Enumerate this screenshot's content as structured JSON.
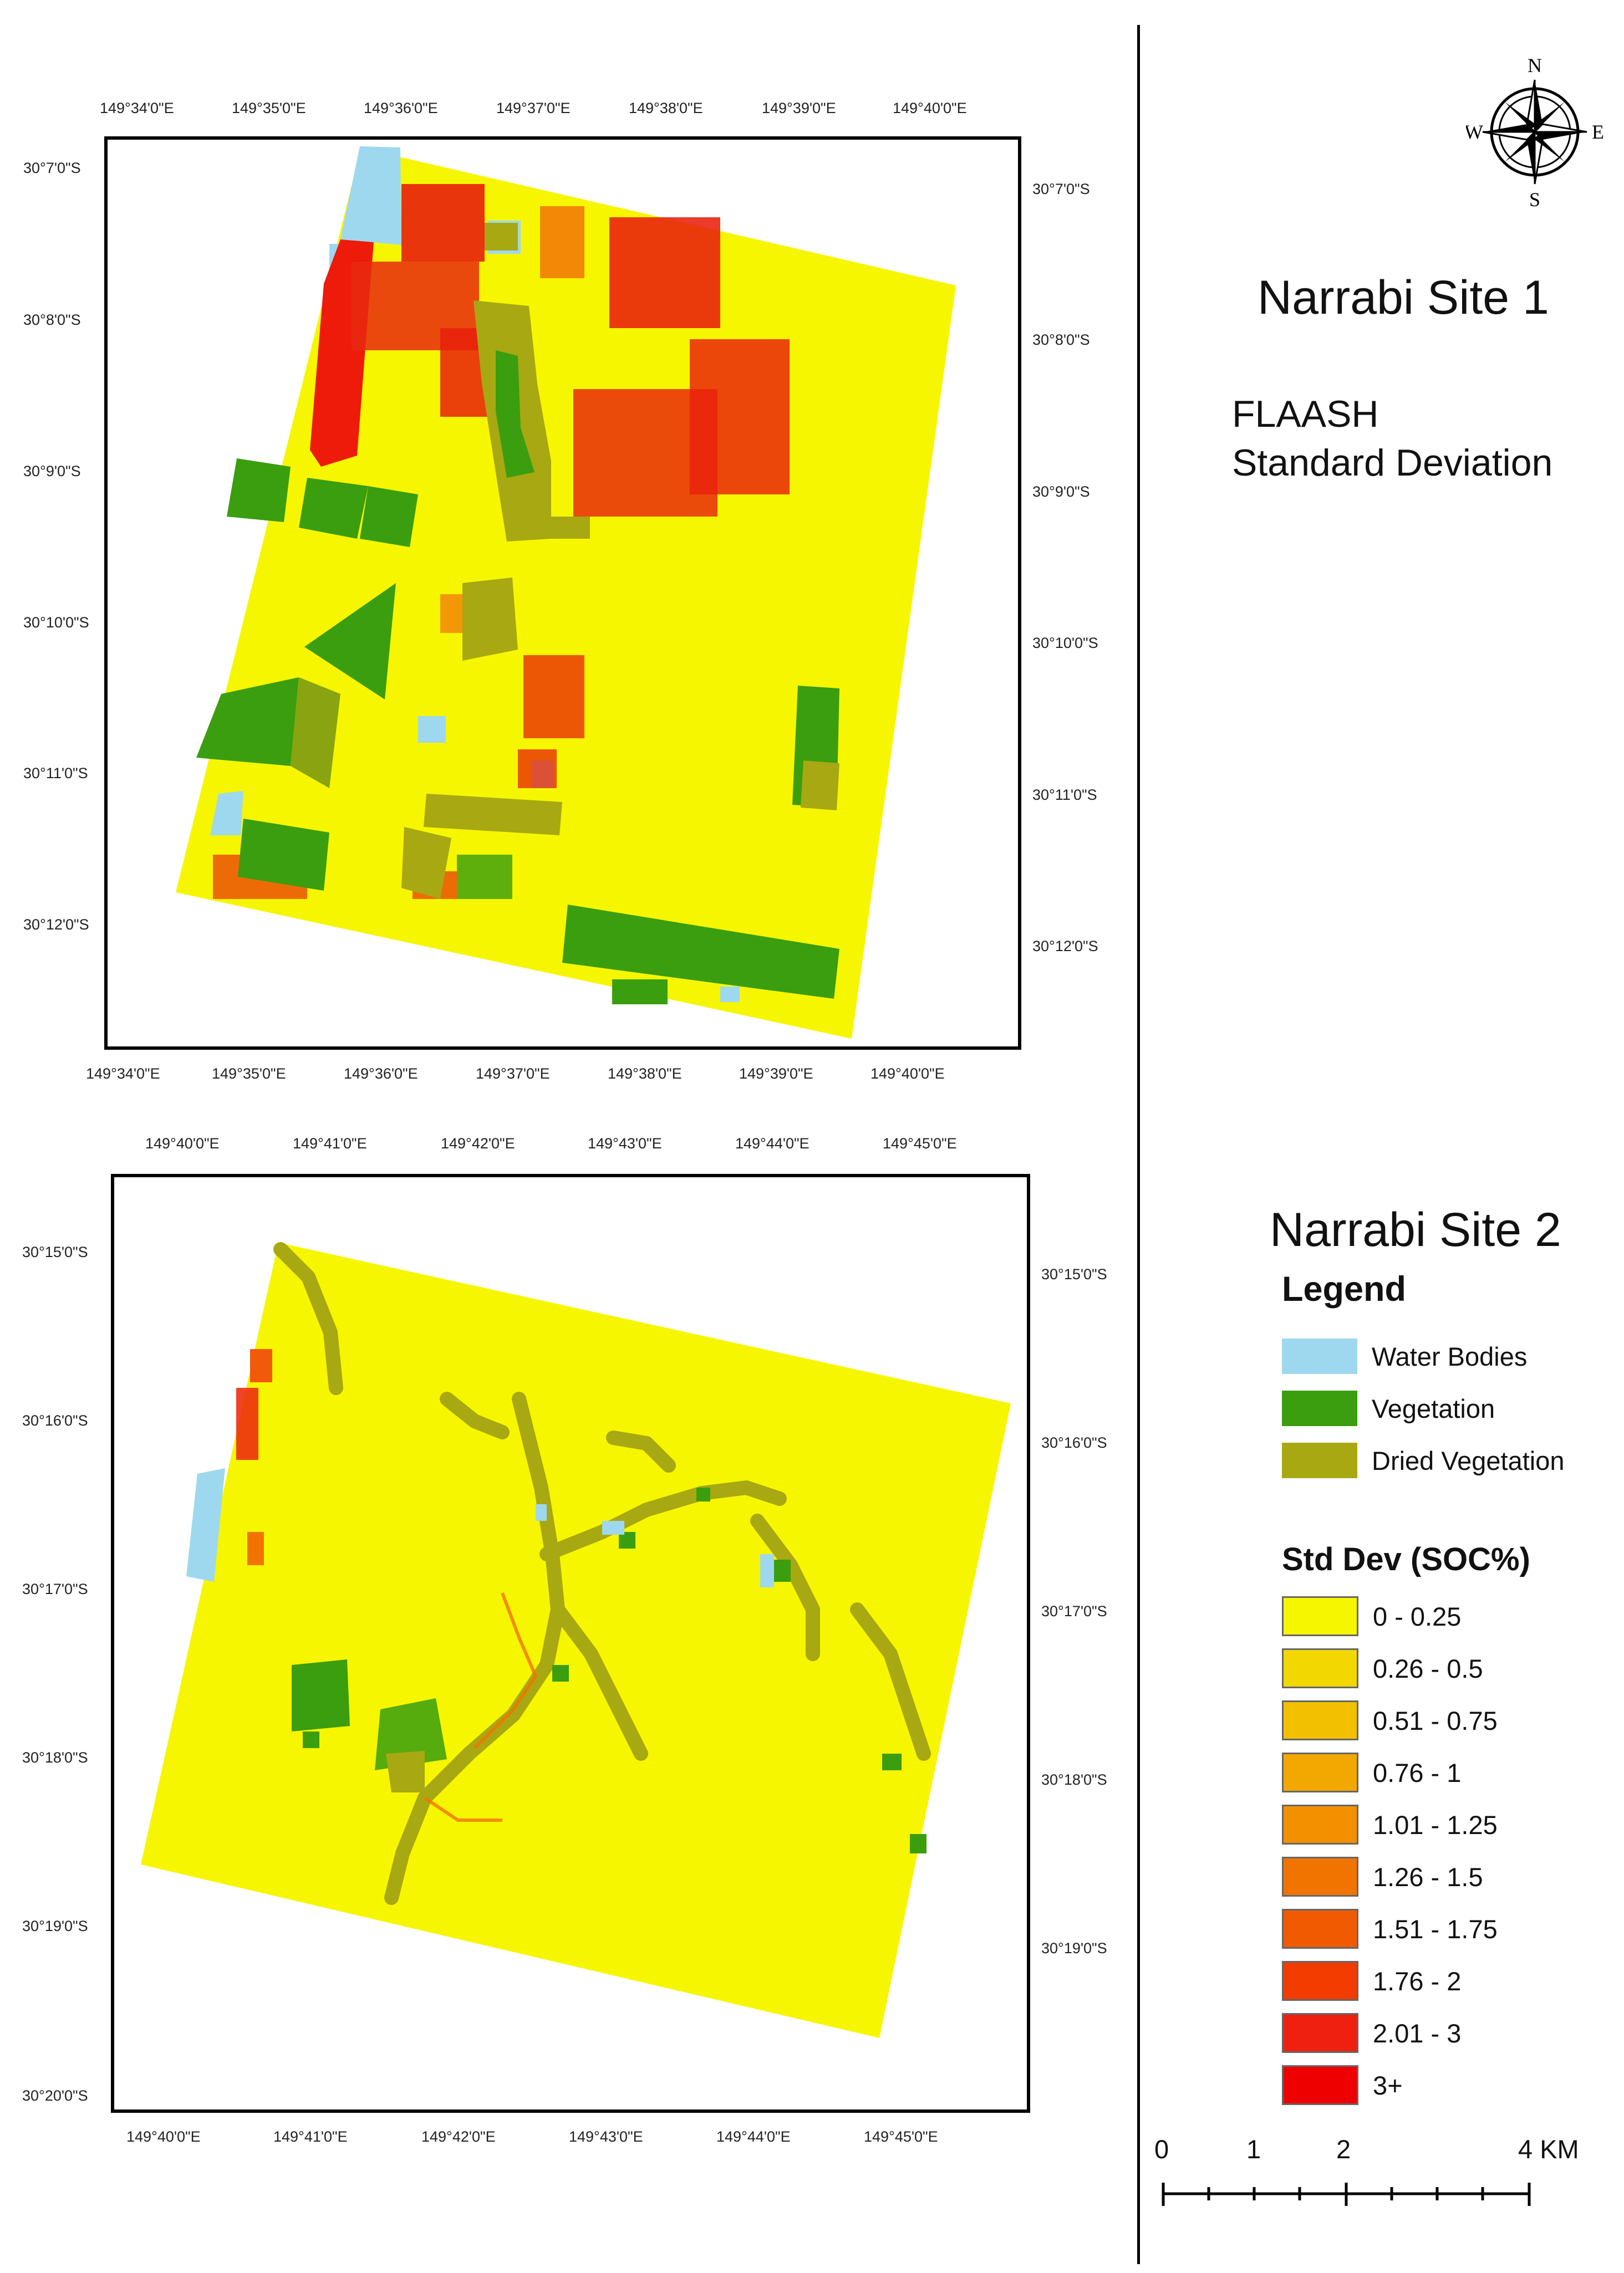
{
  "site1": {
    "title": "Narrabi Site 1",
    "subtitle_line1": "FLAASH",
    "subtitle_line2": "Standard Deviation",
    "top_ticks": [
      "149°34'0\"E",
      "149°35'0\"E",
      "149°36'0\"E",
      "149°37'0\"E",
      "149°38'0\"E",
      "149°39'0\"E",
      "149°40'0\"E"
    ],
    "bottom_ticks": [
      "149°34'0\"E",
      "149°35'0\"E",
      "149°36'0\"E",
      "149°37'0\"E",
      "149°38'0\"E",
      "149°39'0\"E",
      "149°40'0\"E"
    ],
    "left_ticks": [
      "30°7'0\"S",
      "30°8'0\"S",
      "30°9'0\"S",
      "30°10'0\"S",
      "30°11'0\"S",
      "30°12'0\"S"
    ],
    "right_ticks": [
      "30°7'0\"S",
      "30°8'0\"S",
      "30°9'0\"S",
      "30°10'0\"S",
      "30°11'0\"S",
      "30°12'0\"S"
    ]
  },
  "site2": {
    "title": "Narrabi Site 2",
    "top_ticks": [
      "149°40'0\"E",
      "149°41'0\"E",
      "149°42'0\"E",
      "149°43'0\"E",
      "149°44'0\"E",
      "149°45'0\"E"
    ],
    "bottom_ticks": [
      "149°40'0\"E",
      "149°41'0\"E",
      "149°42'0\"E",
      "149°43'0\"E",
      "149°44'0\"E",
      "149°45'0\"E"
    ],
    "left_ticks": [
      "30°15'0\"S",
      "30°16'0\"S",
      "30°17'0\"S",
      "30°18'0\"S",
      "30°19'0\"S",
      "30°20'0\"S"
    ],
    "right_ticks": [
      "30°15'0\"S",
      "30°16'0\"S",
      "30°17'0\"S",
      "30°18'0\"S",
      "30°19'0\"S"
    ]
  },
  "compass": {
    "n": "N",
    "s": "S",
    "e": "E",
    "w": "W",
    "icon": "compass-rose-icon"
  },
  "legend": {
    "title": "Legend",
    "classes": [
      {
        "label": "Water Bodies",
        "color": "#9ed8ef"
      },
      {
        "label": "Vegetation",
        "color": "#3a9e0f"
      },
      {
        "label": "Dried Vegetation",
        "color": "#a8a812"
      }
    ],
    "stddev_title": "Std Dev (SOC%)",
    "stddev": [
      {
        "label": "0 - 0.25",
        "color": "#f6f600"
      },
      {
        "label": "0.26 - 0.5",
        "color": "#f2d800"
      },
      {
        "label": "0.51 - 0.75",
        "color": "#f2c000"
      },
      {
        "label": "0.76 - 1",
        "color": "#f2a800"
      },
      {
        "label": "1.01 - 1.25",
        "color": "#f29000"
      },
      {
        "label": "1.26 - 1.5",
        "color": "#f27400"
      },
      {
        "label": "1.51 - 1.75",
        "color": "#f25a00"
      },
      {
        "label": "1.76 - 2",
        "color": "#f23c00"
      },
      {
        "label": "2.01 - 3",
        "color": "#ef2010"
      },
      {
        "label": "3+",
        "color": "#ee0000"
      }
    ]
  },
  "scalebar": {
    "labels": [
      "0",
      "1",
      "2",
      "4 KM"
    ]
  }
}
